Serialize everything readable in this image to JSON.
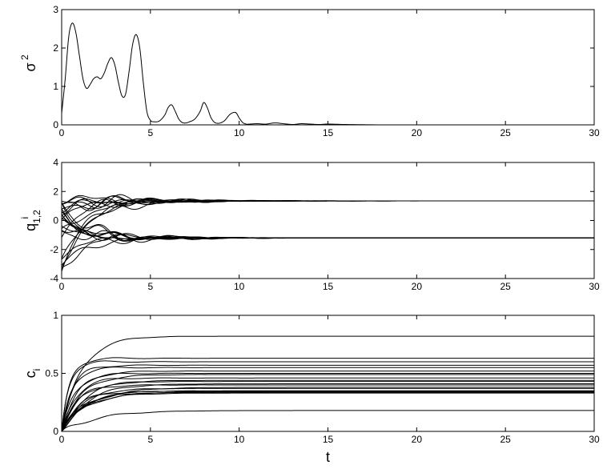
{
  "chart_data": [
    {
      "type": "line",
      "ylabel": "σ",
      "ylabel_sup": "2",
      "xlabel": "",
      "xlim": [
        0,
        30
      ],
      "ylim": [
        0,
        3
      ],
      "xticks": [
        "0",
        "5",
        "10",
        "15",
        "20",
        "25",
        "30"
      ],
      "yticks": [
        "0",
        "1",
        "2",
        "3"
      ],
      "grid": false,
      "series": [
        {
          "x": [
            0,
            0.2,
            0.4,
            0.6,
            0.8,
            1.0,
            1.2,
            1.4,
            1.6,
            1.8,
            2.0,
            2.2,
            2.4,
            2.6,
            2.8,
            3.0,
            3.2,
            3.4,
            3.6,
            3.8,
            4.0,
            4.2,
            4.4,
            4.6,
            4.8,
            5.0,
            5.2,
            5.5,
            5.8,
            6.0,
            6.2,
            6.4,
            6.6,
            6.8,
            7.0,
            7.2,
            7.5,
            7.8,
            8.0,
            8.2,
            8.4,
            8.6,
            8.8,
            9.0,
            9.2,
            9.5,
            9.8,
            10.0,
            10.2,
            10.4,
            10.6,
            11.0,
            11.5,
            12.0,
            12.5,
            13.0,
            13.5,
            14.0,
            14.5,
            15.0,
            16.0,
            18.0,
            20.0,
            25.0,
            30.0
          ],
          "y": [
            0.3,
            1.2,
            2.3,
            2.65,
            2.4,
            1.8,
            1.2,
            0.95,
            1.05,
            1.2,
            1.25,
            1.2,
            1.35,
            1.6,
            1.75,
            1.55,
            1.1,
            0.75,
            0.8,
            1.4,
            2.1,
            2.35,
            2.0,
            1.1,
            0.35,
            0.12,
            0.08,
            0.1,
            0.25,
            0.45,
            0.52,
            0.35,
            0.15,
            0.06,
            0.05,
            0.08,
            0.15,
            0.35,
            0.58,
            0.45,
            0.2,
            0.07,
            0.04,
            0.06,
            0.12,
            0.28,
            0.32,
            0.18,
            0.06,
            0.02,
            0.02,
            0.03,
            0.02,
            0.05,
            0.03,
            0.01,
            0.03,
            0.02,
            0.01,
            0.02,
            0.01,
            0.0,
            0.0,
            0.0,
            0.0
          ]
        }
      ]
    },
    {
      "type": "line",
      "ylabel": "q",
      "ylabel_sup": "i",
      "ylabel_sub": "1,2",
      "xlabel": "",
      "xlim": [
        0,
        30
      ],
      "ylim": [
        -4,
        4
      ],
      "xticks": [
        "0",
        "5",
        "10",
        "15",
        "20",
        "25",
        "30"
      ],
      "yticks": [
        "-4",
        "-2",
        "0",
        "2",
        "4"
      ],
      "grid": false,
      "upper_level": 1.35,
      "lower_level": -1.2,
      "series_starts": [
        1.2,
        0.9,
        0.6,
        0.3,
        1.5,
        -0.3,
        1.0,
        0.2,
        -0.8,
        1.3,
        0.7,
        -0.5,
        1.1,
        0.4,
        -3.5,
        -3.1,
        -2.8,
        -3.3,
        -1.0,
        0.5,
        0.0,
        -0.6,
        0.8,
        -2.5,
        -3.0,
        1.4
      ]
    },
    {
      "type": "line",
      "ylabel": "c",
      "ylabel_sub": "i",
      "xlabel": "t",
      "xlim": [
        0,
        30
      ],
      "ylim": [
        0,
        1
      ],
      "xticks": [
        "0",
        "5",
        "10",
        "15",
        "20",
        "25",
        "30"
      ],
      "yticks": [
        "0",
        "0.5",
        "1"
      ],
      "grid": false,
      "final_levels": [
        0.82,
        0.63,
        0.6,
        0.57,
        0.55,
        0.52,
        0.5,
        0.49,
        0.46,
        0.44,
        0.43,
        0.41,
        0.4,
        0.38,
        0.37,
        0.35,
        0.345,
        0.34,
        0.335,
        0.33,
        0.18
      ],
      "rise_rates": [
        0.9,
        2.2,
        2.5,
        1.6,
        1.8,
        1.1,
        1.4,
        0.9,
        1.3,
        0.8,
        1.0,
        0.7,
        1.2,
        0.6,
        0.9,
        0.8,
        1.0,
        0.7,
        0.85,
        0.75,
        0.5
      ]
    }
  ]
}
